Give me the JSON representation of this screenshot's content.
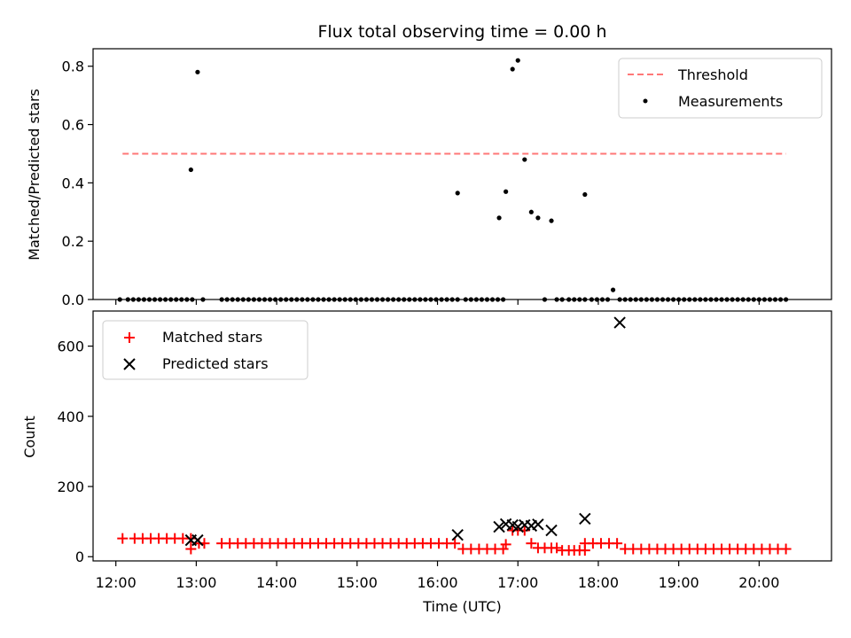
{
  "chart_data": [
    {
      "type": "scatter",
      "title": "Flux total observing time = 0.00 h",
      "xlabel": "",
      "ylabel": "Matched/Predicted stars",
      "xlim": [
        "11:43",
        "20:54"
      ],
      "ylim": [
        0,
        0.86
      ],
      "yticks": [
        0.0,
        0.2,
        0.4,
        0.6,
        0.8
      ],
      "ytick_labels": [
        "0.0",
        "0.2",
        "0.4",
        "0.6",
        "0.8"
      ],
      "legend_position": "top-right",
      "threshold": {
        "name": "Threshold",
        "value": 0.5,
        "x_range": [
          "12:05",
          "20:20"
        ],
        "color": "#ff7777",
        "style": "dashed"
      },
      "series": [
        {
          "name": "Measurements",
          "color": "#000000",
          "marker": "dot",
          "x": [
            "12:03",
            "12:09",
            "12:13",
            "12:17",
            "12:21",
            "12:25",
            "12:29",
            "12:33",
            "12:37",
            "12:41",
            "12:45",
            "12:49",
            "12:53",
            "12:57",
            "12:56",
            "13:01",
            "13:05",
            "13:19",
            "13:23",
            "13:27",
            "13:31",
            "13:35",
            "13:39",
            "13:43",
            "13:47",
            "13:51",
            "13:55",
            "13:59",
            "14:03",
            "14:07",
            "14:11",
            "14:15",
            "14:19",
            "14:23",
            "14:27",
            "14:31",
            "14:35",
            "14:39",
            "14:43",
            "14:47",
            "14:51",
            "14:55",
            "14:59",
            "15:03",
            "15:07",
            "15:11",
            "15:15",
            "15:19",
            "15:23",
            "15:27",
            "15:31",
            "15:35",
            "15:39",
            "15:43",
            "15:47",
            "15:51",
            "15:55",
            "15:59",
            "16:03",
            "16:07",
            "16:11",
            "16:15",
            "16:15",
            "16:21",
            "16:25",
            "16:29",
            "16:33",
            "16:37",
            "16:41",
            "16:45",
            "16:49",
            "16:46",
            "16:51",
            "16:56",
            "17:00",
            "17:05",
            "17:10",
            "17:15",
            "17:20",
            "17:25",
            "17:29",
            "17:33",
            "17:38",
            "17:42",
            "17:46",
            "17:50",
            "17:50",
            "17:55",
            "17:59",
            "18:03",
            "18:07",
            "18:11",
            "18:16",
            "18:20",
            "18:24",
            "18:28",
            "18:32",
            "18:36",
            "18:40",
            "18:44",
            "18:48",
            "18:52",
            "18:56",
            "19:00",
            "19:04",
            "19:08",
            "19:12",
            "19:16",
            "19:20",
            "19:24",
            "19:28",
            "19:32",
            "19:36",
            "19:40",
            "19:44",
            "19:48",
            "19:52",
            "19:56",
            "20:00",
            "20:04",
            "20:08",
            "20:12",
            "20:16",
            "20:20"
          ],
          "y": [
            0,
            0,
            0,
            0,
            0,
            0,
            0,
            0,
            0,
            0,
            0,
            0,
            0,
            0,
            0.445,
            0.78,
            0,
            0,
            0,
            0,
            0,
            0,
            0,
            0,
            0,
            0,
            0,
            0,
            0,
            0,
            0,
            0,
            0,
            0,
            0,
            0,
            0,
            0,
            0,
            0,
            0,
            0,
            0,
            0,
            0,
            0,
            0,
            0,
            0,
            0,
            0,
            0,
            0,
            0,
            0,
            0,
            0,
            0,
            0,
            0,
            0,
            0,
            0.365,
            0,
            0,
            0,
            0,
            0,
            0,
            0,
            0,
            0.28,
            0.37,
            0.79,
            0.82,
            0.48,
            0.3,
            0.28,
            0,
            0.27,
            0,
            0,
            0,
            0,
            0,
            0,
            0.36,
            0,
            0,
            0,
            0,
            0.033,
            0,
            0,
            0,
            0,
            0,
            0,
            0,
            0,
            0,
            0,
            0,
            0,
            0,
            0,
            0,
            0,
            0,
            0,
            0,
            0,
            0,
            0,
            0,
            0,
            0,
            0,
            0,
            0,
            0,
            0,
            0,
            0
          ]
        }
      ]
    },
    {
      "type": "scatter",
      "title": "",
      "xlabel": "Time (UTC)",
      "ylabel": "Count",
      "xlim": [
        "11:43",
        "20:54"
      ],
      "ylim": [
        -12,
        700
      ],
      "yticks": [
        0,
        200,
        400,
        600
      ],
      "ytick_labels": [
        "0",
        "200",
        "400",
        "600"
      ],
      "xticks": [
        "12:00",
        "13:00",
        "14:00",
        "15:00",
        "16:00",
        "17:00",
        "18:00",
        "19:00",
        "20:00"
      ],
      "xtick_labels": [
        "12:00",
        "13:00",
        "14:00",
        "15:00",
        "16:00",
        "17:00",
        "18:00",
        "19:00",
        "20:00"
      ],
      "legend_position": "top-left",
      "series": [
        {
          "name": "Matched stars",
          "color": "#ff0000",
          "marker": "plus",
          "x": [
            "12:05",
            "12:14",
            "12:20",
            "12:26",
            "12:32",
            "12:38",
            "12:44",
            "12:50",
            "12:56",
            "12:56",
            "13:02",
            "13:06",
            "13:19",
            "13:25",
            "13:31",
            "13:37",
            "13:43",
            "13:49",
            "13:55",
            "14:01",
            "14:07",
            "14:13",
            "14:19",
            "14:25",
            "14:31",
            "14:37",
            "14:43",
            "14:49",
            "14:55",
            "15:01",
            "15:07",
            "15:13",
            "15:19",
            "15:25",
            "15:31",
            "15:37",
            "15:43",
            "15:49",
            "15:55",
            "16:01",
            "16:07",
            "16:13",
            "16:19",
            "16:25",
            "16:31",
            "16:37",
            "16:43",
            "16:49",
            "16:51",
            "16:56",
            "17:00",
            "17:05",
            "17:10",
            "17:15",
            "17:20",
            "17:25",
            "17:29",
            "17:33",
            "17:38",
            "17:42",
            "17:46",
            "17:50",
            "17:50",
            "17:56",
            "18:02",
            "18:08",
            "18:14",
            "18:20",
            "18:26",
            "18:32",
            "18:38",
            "18:44",
            "18:50",
            "18:56",
            "19:02",
            "19:08",
            "19:14",
            "19:20",
            "19:26",
            "19:32",
            "19:38",
            "19:44",
            "19:50",
            "19:56",
            "20:02",
            "20:08",
            "20:14",
            "20:20"
          ],
          "y": [
            52,
            52,
            52,
            52,
            52,
            52,
            52,
            52,
            52,
            22,
            38,
            38,
            38,
            38,
            38,
            38,
            38,
            38,
            38,
            38,
            38,
            38,
            38,
            38,
            38,
            38,
            38,
            38,
            38,
            38,
            38,
            38,
            38,
            38,
            38,
            38,
            38,
            38,
            38,
            38,
            38,
            38,
            22,
            22,
            22,
            22,
            22,
            22,
            35,
            75,
            75,
            75,
            38,
            25,
            25,
            25,
            25,
            18,
            18,
            18,
            18,
            18,
            38,
            38,
            38,
            38,
            38,
            22,
            22,
            22,
            22,
            22,
            22,
            22,
            22,
            22,
            22,
            22,
            22,
            22,
            22,
            22,
            22,
            22,
            22,
            22,
            22,
            22
          ]
        },
        {
          "name": "Predicted stars",
          "color": "#000000",
          "marker": "x",
          "x": [
            "12:56",
            "13:01",
            "16:15",
            "16:46",
            "16:51",
            "16:56",
            "17:00",
            "17:05",
            "17:10",
            "17:15",
            "17:25",
            "17:50",
            "18:16"
          ],
          "y": [
            47,
            47,
            62,
            85,
            93,
            90,
            85,
            90,
            88,
            92,
            75,
            108,
            667
          ]
        }
      ]
    }
  ]
}
